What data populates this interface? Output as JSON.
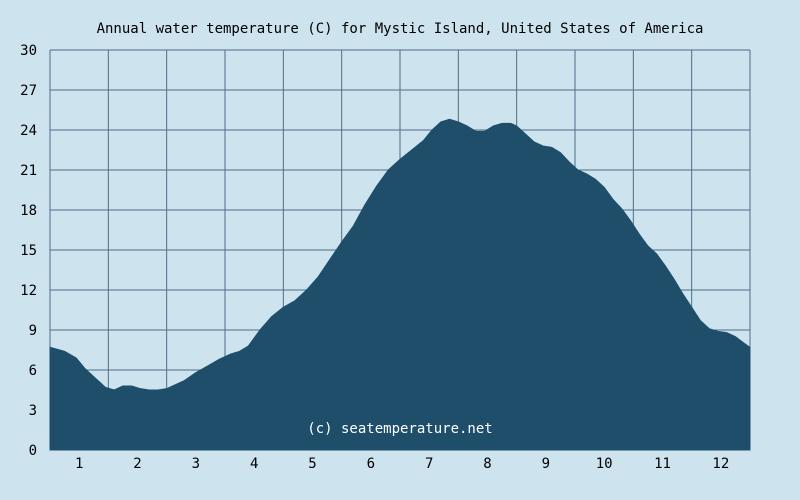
{
  "chart_data": {
    "type": "area",
    "title": "Annual water temperature (C) for Mystic Island, United States of America",
    "watermark": "(c) seatemperature.net",
    "xlabel": "",
    "ylabel": "",
    "x_categories": [
      "1",
      "2",
      "3",
      "4",
      "5",
      "6",
      "7",
      "8",
      "9",
      "10",
      "11",
      "12"
    ],
    "xlim": [
      0.5,
      12.5
    ],
    "ylim": [
      0,
      30
    ],
    "y_ticks": [
      "0",
      "3",
      "6",
      "9",
      "12",
      "15",
      "18",
      "21",
      "24",
      "27",
      "30"
    ],
    "grid": true,
    "series": [
      {
        "x": [
          0.5,
          0.75,
          0.95,
          1.1,
          1.3,
          1.45,
          1.6,
          1.75,
          1.9,
          2.05,
          2.2,
          2.35,
          2.5,
          2.65,
          2.8,
          3.0,
          3.2,
          3.4,
          3.6,
          3.75,
          3.9,
          4.1,
          4.3,
          4.5,
          4.7,
          4.9,
          5.1,
          5.3,
          5.5,
          5.7,
          5.9,
          6.1,
          6.3,
          6.5,
          6.7,
          6.9,
          7.05,
          7.2,
          7.35,
          7.5,
          7.65,
          7.8,
          7.95,
          8.1,
          8.25,
          8.4,
          8.5,
          8.65,
          8.8,
          8.95,
          9.1,
          9.25,
          9.4,
          9.55,
          9.7,
          9.85,
          10.0,
          10.15,
          10.3,
          10.45,
          10.6,
          10.75,
          10.9,
          11.05,
          11.2,
          11.35,
          11.5,
          11.65,
          11.8,
          11.95,
          12.1,
          12.25,
          12.4,
          12.5
        ],
        "values": [
          7.7,
          7.4,
          6.9,
          6.1,
          5.3,
          4.7,
          4.5,
          4.8,
          4.8,
          4.6,
          4.5,
          4.5,
          4.6,
          4.9,
          5.2,
          5.8,
          6.3,
          6.8,
          7.2,
          7.4,
          7.8,
          9.0,
          10.0,
          10.7,
          11.2,
          12.0,
          13.0,
          14.3,
          15.6,
          16.8,
          18.4,
          19.8,
          21.0,
          21.8,
          22.5,
          23.2,
          24.0,
          24.6,
          24.8,
          24.6,
          24.3,
          23.9,
          23.9,
          24.3,
          24.5,
          24.5,
          24.3,
          23.7,
          23.1,
          22.8,
          22.7,
          22.3,
          21.6,
          21.0,
          20.7,
          20.3,
          19.7,
          18.8,
          18.1,
          17.2,
          16.2,
          15.3,
          14.7,
          13.8,
          12.8,
          11.7,
          10.7,
          9.7,
          9.1,
          8.9,
          8.8,
          8.5,
          8.0,
          7.7
        ]
      }
    ],
    "colors": {
      "background": "#cde3ee",
      "plot_background": "#cde3ee",
      "fill": "#1f4e6b",
      "grid": "#4d6e87",
      "text": "#000000",
      "watermark": "#ffffff"
    }
  }
}
